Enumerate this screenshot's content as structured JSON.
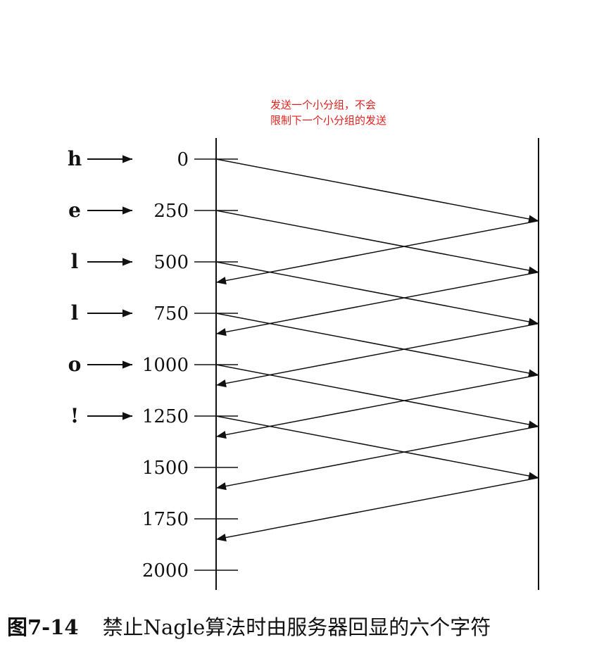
{
  "annotation": {
    "line1": "发送一个小分组，不会",
    "line2": "限制下一个小分组的发送"
  },
  "characters": [
    "h",
    "e",
    "l",
    "l",
    "o",
    "!"
  ],
  "time_labels": [
    "0",
    "250",
    "500",
    "750",
    "1000",
    "1250",
    "1500",
    "1750",
    "2000"
  ],
  "caption": {
    "number": "图7-14",
    "text": "禁止Nagle算法时由服务器回显的六个字符"
  },
  "chart_data": {
    "type": "timeline",
    "time_axis": [
      0,
      250,
      500,
      750,
      1000,
      1250,
      1500,
      1750,
      2000
    ],
    "sends": [
      {
        "char": "h",
        "depart": 0,
        "arrive": 300
      },
      {
        "char": "e",
        "depart": 250,
        "arrive": 550
      },
      {
        "char": "l",
        "depart": 500,
        "arrive": 800
      },
      {
        "char": "l",
        "depart": 750,
        "arrive": 1050
      },
      {
        "char": "o",
        "depart": 1000,
        "arrive": 1300
      },
      {
        "char": "!",
        "depart": 1250,
        "arrive": 1550
      }
    ],
    "echoes": [
      {
        "depart": 300,
        "arrive": 600
      },
      {
        "depart": 550,
        "arrive": 850
      },
      {
        "depart": 800,
        "arrive": 1100
      },
      {
        "depart": 1050,
        "arrive": 1350
      },
      {
        "depart": 1300,
        "arrive": 1600
      },
      {
        "depart": 1550,
        "arrive": 1850
      }
    ]
  }
}
